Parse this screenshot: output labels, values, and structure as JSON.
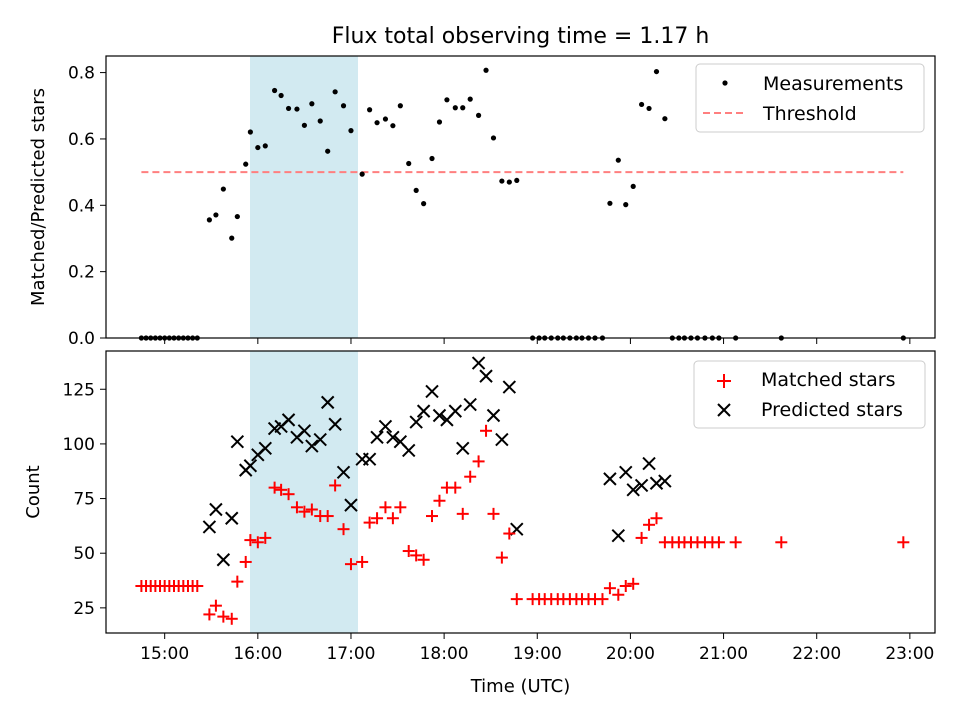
{
  "figure": {
    "title": "Flux total observing time = 1.17 h",
    "xlabel": "Time (UTC)",
    "xticks": [
      "15:00",
      "16:00",
      "17:00",
      "18:00",
      "19:00",
      "20:00",
      "21:00",
      "22:00",
      "23:00"
    ],
    "shade_color": "#add8e6"
  },
  "chart_data": [
    {
      "type": "scatter",
      "title": "Flux total observing time = 1.17 h",
      "xlabel": "",
      "ylabel": "Matched/Predicted stars",
      "x_unit": "hours UTC",
      "xlim": [
        14.37,
        23.27
      ],
      "ylim": [
        0.0,
        0.85
      ],
      "yticks": [
        0.0,
        0.2,
        0.4,
        0.6,
        0.8
      ],
      "shaded_interval": [
        15.88,
        17.05
      ],
      "legend": {
        "position": "top-right",
        "entries": [
          "Measurements",
          "Threshold"
        ]
      },
      "series": [
        {
          "name": "Measurements",
          "marker": "dot",
          "color": "#000000",
          "x": [
            14.75,
            14.8,
            14.85,
            14.9,
            14.95,
            15.0,
            15.05,
            15.1,
            15.15,
            15.2,
            15.25,
            15.3,
            15.35,
            15.48,
            15.55,
            15.63,
            15.72,
            15.78,
            15.87,
            15.92,
            16.0,
            16.08,
            16.18,
            16.25,
            16.33,
            16.42,
            16.5,
            16.58,
            16.67,
            16.75,
            16.83,
            16.92,
            17.0,
            17.12,
            17.2,
            17.28,
            17.37,
            17.45,
            17.53,
            17.62,
            17.7,
            17.78,
            17.87,
            17.95,
            18.03,
            18.12,
            18.2,
            18.28,
            18.37,
            18.45,
            18.53,
            18.62,
            18.7,
            18.78,
            18.95,
            19.02,
            19.08,
            19.15,
            19.22,
            19.28,
            19.35,
            19.42,
            19.48,
            19.55,
            19.62,
            19.7,
            19.78,
            19.87,
            19.95,
            20.03,
            20.12,
            20.2,
            20.28,
            20.37,
            20.45,
            20.52,
            20.58,
            20.65,
            20.72,
            20.8,
            20.88,
            20.95,
            21.13,
            21.62,
            22.93
          ],
          "y": [
            0.0,
            0.0,
            0.0,
            0.0,
            0.0,
            0.0,
            0.0,
            0.0,
            0.0,
            0.0,
            0.0,
            0.0,
            0.0,
            0.356,
            0.371,
            0.449,
            0.301,
            0.366,
            0.524,
            0.621,
            0.574,
            0.579,
            0.746,
            0.731,
            0.692,
            0.69,
            0.641,
            0.706,
            0.654,
            0.563,
            0.742,
            0.7,
            0.625,
            0.494,
            0.688,
            0.649,
            0.66,
            0.64,
            0.7,
            0.526,
            0.445,
            0.405,
            0.541,
            0.651,
            0.718,
            0.694,
            0.694,
            0.72,
            0.671,
            0.807,
            0.603,
            0.473,
            0.47,
            0.475,
            0.0,
            0.0,
            0.0,
            0.0,
            0.0,
            0.0,
            0.0,
            0.0,
            0.0,
            0.0,
            0.0,
            0.0,
            0.406,
            0.536,
            0.402,
            0.457,
            0.704,
            0.692,
            0.803,
            0.661,
            0.0,
            0.0,
            0.0,
            0.0,
            0.0,
            0.0,
            0.0,
            0.0,
            0.0,
            0.0,
            0.0
          ]
        },
        {
          "name": "Threshold",
          "style": "dashed",
          "color": "#ff7f7f",
          "x": [
            14.75,
            22.93
          ],
          "y": [
            0.5,
            0.5
          ]
        }
      ]
    },
    {
      "type": "scatter",
      "title": "",
      "xlabel": "Time (UTC)",
      "ylabel": "Count",
      "x_unit": "hours UTC",
      "xlim": [
        14.37,
        23.27
      ],
      "ylim": [
        13.5,
        142.5
      ],
      "yticks": [
        25,
        50,
        75,
        100,
        125
      ],
      "shaded_interval": [
        15.88,
        17.05
      ],
      "legend": {
        "position": "top-right",
        "entries": [
          "Matched stars",
          "Predicted stars"
        ]
      },
      "series": [
        {
          "name": "Matched stars",
          "marker": "plus",
          "color": "#ff0000",
          "x": [
            14.75,
            14.8,
            14.85,
            14.9,
            14.95,
            15.0,
            15.05,
            15.1,
            15.15,
            15.2,
            15.25,
            15.3,
            15.35,
            15.48,
            15.55,
            15.63,
            15.72,
            15.78,
            15.87,
            15.92,
            16.0,
            16.08,
            16.18,
            16.25,
            16.33,
            16.42,
            16.5,
            16.58,
            16.67,
            16.75,
            16.83,
            16.92,
            17.0,
            17.12,
            17.2,
            17.28,
            17.37,
            17.45,
            17.53,
            17.62,
            17.7,
            17.78,
            17.87,
            17.95,
            18.03,
            18.12,
            18.2,
            18.28,
            18.37,
            18.45,
            18.53,
            18.62,
            18.7,
            18.78,
            18.95,
            19.02,
            19.08,
            19.15,
            19.22,
            19.28,
            19.35,
            19.42,
            19.48,
            19.55,
            19.62,
            19.7,
            19.78,
            19.87,
            19.95,
            20.03,
            20.12,
            20.2,
            20.28,
            20.37,
            20.45,
            20.52,
            20.58,
            20.65,
            20.72,
            20.8,
            20.88,
            20.95,
            21.13,
            21.62,
            22.93
          ],
          "y": [
            35,
            35,
            35,
            35,
            35,
            35,
            35,
            35,
            35,
            35,
            35,
            35,
            35,
            22,
            26,
            21,
            20,
            37,
            46,
            56,
            55,
            57,
            80,
            79,
            77,
            71,
            69,
            70,
            67,
            67,
            81,
            61,
            45,
            46,
            64,
            66,
            71,
            66,
            71,
            51,
            49,
            47,
            67,
            74,
            80,
            80,
            68,
            85,
            92,
            106,
            68,
            48,
            59,
            29,
            29,
            29,
            29,
            29,
            29,
            29,
            29,
            29,
            29,
            29,
            29,
            29,
            34,
            31,
            35,
            36,
            57,
            63,
            66,
            55,
            55,
            55,
            55,
            55,
            55,
            55,
            55,
            55,
            55,
            55,
            55
          ]
        },
        {
          "name": "Predicted stars",
          "marker": "x",
          "color": "#000000",
          "x": [
            15.48,
            15.55,
            15.63,
            15.72,
            15.78,
            15.87,
            15.92,
            16.0,
            16.08,
            16.18,
            16.25,
            16.33,
            16.42,
            16.5,
            16.58,
            16.67,
            16.75,
            16.83,
            16.92,
            17.0,
            17.12,
            17.2,
            17.28,
            17.37,
            17.45,
            17.53,
            17.62,
            17.7,
            17.78,
            17.87,
            17.95,
            18.03,
            18.12,
            18.2,
            18.28,
            18.37,
            18.45,
            18.53,
            18.62,
            18.7,
            18.78,
            19.78,
            19.87,
            19.95,
            20.03,
            20.12,
            20.2,
            20.28,
            20.37
          ],
          "y": [
            62,
            70,
            47,
            66,
            101,
            88,
            90,
            95,
            98,
            107,
            108,
            111,
            103,
            106,
            99,
            102,
            119,
            109,
            87,
            72,
            93,
            93,
            103,
            108,
            103,
            101,
            97,
            110,
            115,
            124,
            113,
            111,
            115,
            98,
            118,
            137,
            131,
            113,
            102,
            126,
            61,
            84,
            58,
            87,
            79,
            81,
            91,
            82,
            83
          ]
        }
      ]
    }
  ]
}
